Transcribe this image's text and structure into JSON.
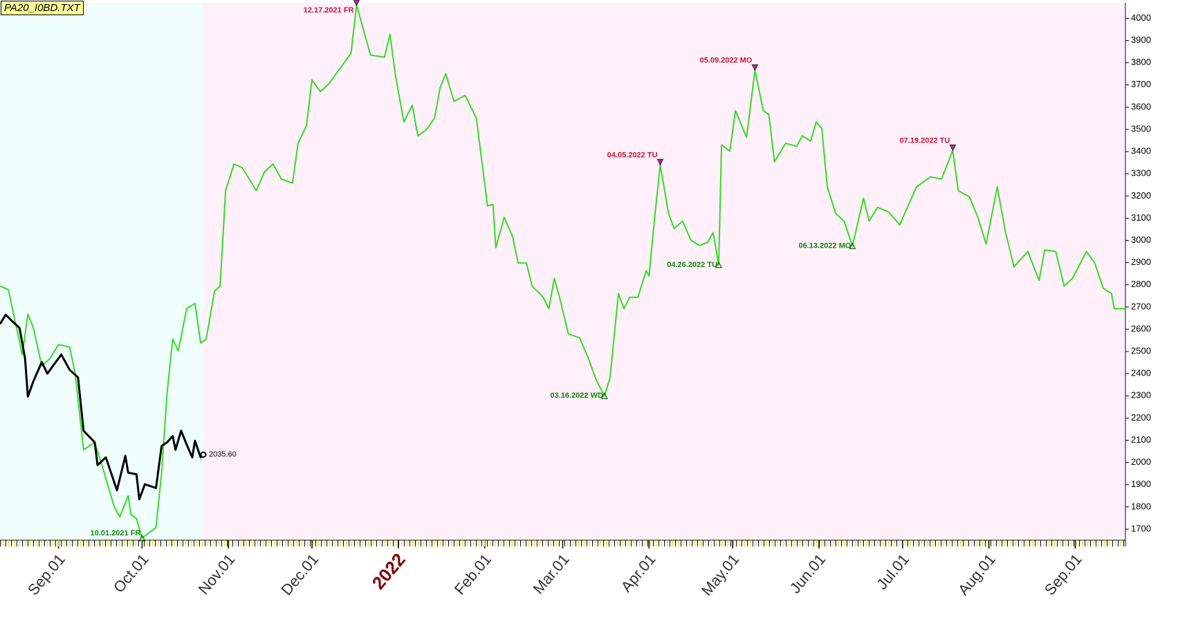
{
  "chart_data": {
    "type": "line",
    "title": "PA20_I0BD.TXT",
    "xlim": [
      "2021-08-11",
      "2022-09-19"
    ],
    "ylim": [
      1650,
      4070
    ],
    "yticks": [
      1700,
      1800,
      1900,
      2000,
      2100,
      2200,
      2300,
      2400,
      2500,
      2600,
      2700,
      2800,
      2900,
      3000,
      3100,
      3200,
      3300,
      3400,
      3500,
      3600,
      3700,
      3800,
      3900,
      4000
    ],
    "xticks": [
      {
        "value": "2021-09-01",
        "label": "Sep.01"
      },
      {
        "value": "2021-10-01",
        "label": "Oct.01"
      },
      {
        "value": "2021-11-01",
        "label": "Nov.01"
      },
      {
        "value": "2021-12-01",
        "label": "Dec.01"
      },
      {
        "value": "2022-01-01",
        "label": "2022"
      },
      {
        "value": "2022-02-01",
        "label": "Feb.01"
      },
      {
        "value": "2022-03-01",
        "label": "Mar.01"
      },
      {
        "value": "2022-04-01",
        "label": "Apr.01"
      },
      {
        "value": "2022-05-01",
        "label": "May.01"
      },
      {
        "value": "2022-06-01",
        "label": "Jun.01"
      },
      {
        "value": "2022-07-01",
        "label": "Jul.01"
      },
      {
        "value": "2022-08-01",
        "label": "Aug.01"
      },
      {
        "value": "2022-09-01",
        "label": "Sep.01"
      }
    ],
    "year_tick_color": "#800000",
    "background_colors": [
      "#f0fffd",
      "#fff0fa"
    ],
    "series": [
      {
        "color": "#33dd22",
        "x": [
          "2021-08-11",
          "2021-08-14",
          "2021-08-19",
          "2021-08-21",
          "2021-08-23",
          "2021-08-26",
          "2021-08-29",
          "2021-09-01",
          "2021-09-05",
          "2021-09-07",
          "2021-09-10",
          "2021-09-14",
          "2021-09-17",
          "2021-09-21",
          "2021-09-23",
          "2021-09-26",
          "2021-09-27",
          "2021-09-29",
          "2021-10-01",
          "2021-10-06",
          "2021-10-08",
          "2021-10-10",
          "2021-10-12",
          "2021-10-14",
          "2021-10-17",
          "2021-10-20",
          "2021-10-22",
          "2021-10-24",
          "2021-10-27",
          "2021-10-29",
          "2021-10-31",
          "2021-11-03",
          "2021-11-06",
          "2021-11-11",
          "2021-11-14",
          "2021-11-17",
          "2021-11-20",
          "2021-11-24",
          "2021-11-26",
          "2021-11-29",
          "2021-12-01",
          "2021-12-04",
          "2021-12-07",
          "2021-12-10",
          "2021-12-14",
          "2021-12-15",
          "2021-12-17",
          "2021-12-22",
          "2021-12-27",
          "2021-12-29",
          "2021-12-31",
          "2022-01-03",
          "2022-01-06",
          "2022-01-08",
          "2022-01-11",
          "2022-01-14",
          "2022-01-16",
          "2022-01-18",
          "2022-01-21",
          "2022-01-25",
          "2022-01-29",
          "2022-02-02",
          "2022-02-04",
          "2022-02-05",
          "2022-02-08",
          "2022-02-11",
          "2022-02-13",
          "2022-02-16",
          "2022-02-18",
          "2022-02-22",
          "2022-02-24",
          "2022-02-26",
          "2022-02-28",
          "2022-03-03",
          "2022-03-07",
          "2022-03-10",
          "2022-03-13",
          "2022-03-16",
          "2022-03-18",
          "2022-03-21",
          "2022-03-23",
          "2022-03-25",
          "2022-03-28",
          "2022-03-31",
          "2022-04-01",
          "2022-04-03",
          "2022-04-05",
          "2022-04-08",
          "2022-04-10",
          "2022-04-13",
          "2022-04-16",
          "2022-04-19",
          "2022-04-22",
          "2022-04-24",
          "2022-04-26",
          "2022-04-27",
          "2022-04-30",
          "2022-05-02",
          "2022-05-06",
          "2022-05-09",
          "2022-05-12",
          "2022-05-14",
          "2022-05-16",
          "2022-05-20",
          "2022-05-24",
          "2022-05-26",
          "2022-05-29",
          "2022-05-31",
          "2022-06-02",
          "2022-06-04",
          "2022-06-07",
          "2022-06-10",
          "2022-06-13",
          "2022-06-17",
          "2022-06-19",
          "2022-06-22",
          "2022-06-26",
          "2022-06-30",
          "2022-07-02",
          "2022-07-06",
          "2022-07-11",
          "2022-07-15",
          "2022-07-19",
          "2022-07-21",
          "2022-07-25",
          "2022-07-28",
          "2022-07-31",
          "2022-08-04",
          "2022-08-07",
          "2022-08-10",
          "2022-08-15",
          "2022-08-19",
          "2022-08-21",
          "2022-08-25",
          "2022-08-28",
          "2022-08-31",
          "2022-09-05",
          "2022-09-08",
          "2022-09-11",
          "2022-09-14",
          "2022-09-15",
          "2022-09-19"
        ],
        "values": [
          2795,
          2778,
          2486,
          2668,
          2606,
          2435,
          2469,
          2531,
          2520,
          2400,
          2057,
          2091,
          1971,
          1800,
          1755,
          1851,
          1765,
          1748,
          1660,
          1707,
          1954,
          2314,
          2555,
          2503,
          2692,
          2716,
          2538,
          2555,
          2771,
          2795,
          3224,
          3344,
          3327,
          3224,
          3310,
          3344,
          3276,
          3258,
          3437,
          3516,
          3722,
          3670,
          3704,
          3756,
          3825,
          3842,
          4060,
          3835,
          3825,
          3928,
          3739,
          3533,
          3609,
          3471,
          3498,
          3550,
          3688,
          3750,
          3626,
          3653,
          3550,
          3155,
          3162,
          2967,
          3104,
          3018,
          2898,
          2898,
          2795,
          2744,
          2692,
          2829,
          2737,
          2579,
          2562,
          2476,
          2373,
          2300,
          2383,
          2761,
          2692,
          2744,
          2744,
          2864,
          2840,
          3104,
          3340,
          3121,
          3053,
          3087,
          3001,
          2977,
          2991,
          3035,
          2890,
          3430,
          3402,
          3584,
          3464,
          3766,
          3584,
          3567,
          3354,
          3437,
          3423,
          3471,
          3447,
          3533,
          3505,
          3241,
          3121,
          3087,
          2975,
          3190,
          3087,
          3149,
          3128,
          3070,
          3128,
          3241,
          3286,
          3276,
          3405,
          3224,
          3196,
          3104,
          2984,
          3241,
          3035,
          2881,
          2950,
          2819,
          2957,
          2950,
          2795,
          2829,
          2950,
          2898,
          2785,
          2761,
          2692,
          2692
        ]
      },
      {
        "color": "#000000",
        "x": [
          "2021-08-11",
          "2021-08-13",
          "2021-08-15",
          "2021-08-18",
          "2021-08-20",
          "2021-08-21",
          "2021-08-23",
          "2021-08-26",
          "2021-08-28",
          "2021-08-30",
          "2021-09-02",
          "2021-09-05",
          "2021-09-08",
          "2021-09-10",
          "2021-09-14",
          "2021-09-15",
          "2021-09-18",
          "2021-09-22",
          "2021-09-25",
          "2021-09-26",
          "2021-09-29",
          "2021-09-30",
          "2021-10-02",
          "2021-10-06",
          "2021-10-08",
          "2021-10-10",
          "2021-10-12",
          "2021-10-13",
          "2021-10-15",
          "2021-10-17",
          "2021-10-19",
          "2021-10-20",
          "2021-10-22",
          "2021-10-23"
        ],
        "values": [
          2623,
          2665,
          2641,
          2606,
          2469,
          2297,
          2366,
          2452,
          2400,
          2435,
          2486,
          2417,
          2383,
          2143,
          2091,
          1988,
          2023,
          1875,
          2030,
          1954,
          1947,
          1834,
          1902,
          1885,
          2074,
          2091,
          2119,
          2057,
          2143,
          2081,
          2023,
          2098,
          2023,
          2035.6
        ],
        "value_labels": [
          null,
          null,
          null,
          null,
          null,
          null,
          null,
          null,
          null,
          null,
          null,
          null,
          null,
          null,
          null,
          null,
          null,
          null,
          null,
          null,
          null,
          null,
          null,
          null,
          null,
          null,
          null,
          null,
          null,
          null,
          null,
          null,
          null,
          "2035.60"
        ]
      }
    ],
    "annotations": [
      {
        "label": "12.17.2021 FR",
        "x": "2021-12-17",
        "y": 4060,
        "color": "#cc1133",
        "marker": "down"
      },
      {
        "label": "10.01.2021 FR",
        "x": "2021-10-01",
        "y": 1660,
        "color": "#118811",
        "marker": "up"
      },
      {
        "label": "03.16.2022 WD",
        "x": "2022-03-16",
        "y": 2300,
        "color": "#118811",
        "marker": "up"
      },
      {
        "label": "04.05.2022 TU",
        "x": "2022-04-05",
        "y": 3340,
        "color": "#cc1133",
        "marker": "down"
      },
      {
        "label": "04.26.2022 TU",
        "x": "2022-04-26",
        "y": 2890,
        "color": "#118811",
        "marker": "up"
      },
      {
        "label": "05.09.2022 MO",
        "x": "2022-05-09",
        "y": 3766,
        "color": "#cc1133",
        "marker": "down"
      },
      {
        "label": "06.13.2022 MO",
        "x": "2022-06-13",
        "y": 2975,
        "color": "#118811",
        "marker": "up"
      },
      {
        "label": "07.19.2022 TU",
        "x": "2022-07-19",
        "y": 3405,
        "color": "#cc1133",
        "marker": "down"
      }
    ]
  }
}
